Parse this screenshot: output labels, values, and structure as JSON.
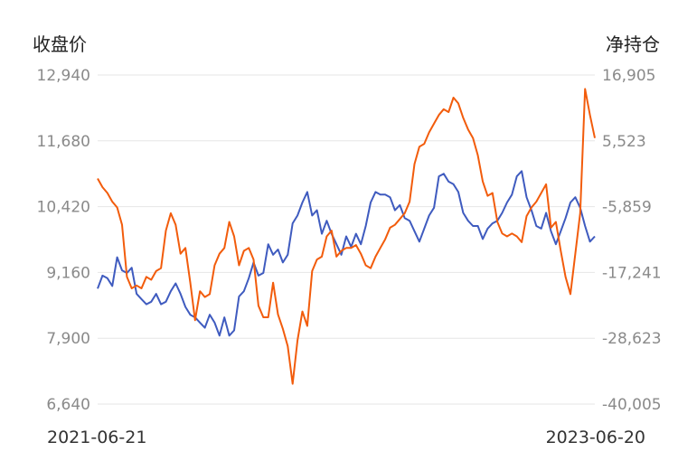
{
  "chart_data": {
    "type": "line",
    "left_axis_title": "收盘价",
    "right_axis_title": "净持仓",
    "left_ticks": [
      "12,940",
      "11,680",
      "10,420",
      "9,160",
      "7,900",
      "6,640"
    ],
    "right_ticks": [
      "16,905",
      "5,523",
      "-5,859",
      "-17,241",
      "-28,623",
      "-40,005"
    ],
    "x_start_label": "2021-06-21",
    "x_end_label": "2023-06-20",
    "left_ylim": [
      6640,
      12940
    ],
    "right_ylim": [
      -40005,
      16905
    ],
    "grid": true,
    "series": [
      {
        "color": "#3f5bbf",
        "axis": "left",
        "values": [
          8850,
          9100,
          9050,
          8900,
          9450,
          9200,
          9150,
          9250,
          8750,
          8650,
          8550,
          8600,
          8750,
          8550,
          8600,
          8800,
          8950,
          8750,
          8500,
          8350,
          8300,
          8200,
          8100,
          8350,
          8200,
          7950,
          8300,
          7950,
          8050,
          8700,
          8800,
          9050,
          9350,
          9100,
          9150,
          9700,
          9500,
          9600,
          9350,
          9500,
          10100,
          10250,
          10500,
          10700,
          10250,
          10350,
          9900,
          10150,
          9900,
          9700,
          9500,
          9850,
          9650,
          9900,
          9700,
          10050,
          10500,
          10700,
          10650,
          10650,
          10600,
          10350,
          10450,
          10200,
          10150,
          9950,
          9750,
          10000,
          10250,
          10400,
          11000,
          11050,
          10900,
          10850,
          10700,
          10300,
          10150,
          10050,
          10050,
          9800,
          10000,
          10100,
          10150,
          10300,
          10500,
          10650,
          11000,
          11100,
          10600,
          10350,
          10050,
          10000,
          10300,
          9950,
          9700,
          9950,
          10200,
          10500,
          10600,
          10400,
          10050,
          9750,
          9850
        ]
      },
      {
        "color": "#f25c0c",
        "axis": "right",
        "values": [
          -1000,
          -2500,
          -3500,
          -5000,
          -6000,
          -9000,
          -18000,
          -20000,
          -19500,
          -20000,
          -18000,
          -18500,
          -17000,
          -16500,
          -10000,
          -7000,
          -9000,
          -14000,
          -13000,
          -19000,
          -25500,
          -20500,
          -21500,
          -21000,
          -16000,
          -14000,
          -13000,
          -8500,
          -11000,
          -16000,
          -13500,
          -13000,
          -15000,
          -23000,
          -25000,
          -25000,
          -19000,
          -24500,
          -27000,
          -30000,
          -36500,
          -29000,
          -24000,
          -26500,
          -17000,
          -15000,
          -14500,
          -11000,
          -10000,
          -14500,
          -13500,
          -13000,
          -13000,
          -12500,
          -14000,
          -16000,
          -16500,
          -14500,
          -13000,
          -11500,
          -9500,
          -9000,
          -8000,
          -7000,
          -5000,
          1500,
          4500,
          5000,
          7000,
          8500,
          10000,
          11000,
          10500,
          13000,
          12000,
          9500,
          7500,
          6000,
          3000,
          -1500,
          -4000,
          -3500,
          -8500,
          -10500,
          -11000,
          -10500,
          -11000,
          -12000,
          -7500,
          -6000,
          -5000,
          -3500,
          -2000,
          -9500,
          -8500,
          -13500,
          -18000,
          -21000,
          -14000,
          -7000,
          14500,
          10000,
          6000
        ]
      }
    ]
  }
}
